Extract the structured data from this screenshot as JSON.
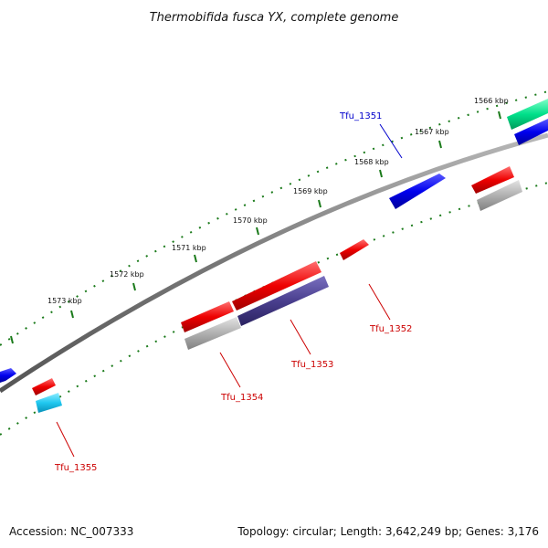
{
  "title": "Thermobifida fusca YX, complete genome",
  "footer": {
    "accession": "Accession: NC_007333",
    "summary": "Topology: circular; Length: 3,642,249 bp; Genes: 3,176"
  },
  "ticks": [
    "1566 kbp",
    "1567 kbp",
    "1568 kbp",
    "1569 kbp",
    "1570 kbp",
    "1571 kbp",
    "1572 kbp",
    "1573 kbp"
  ],
  "gene_labels": [
    "Tfu_1351",
    "Tfu_1352",
    "Tfu_1353",
    "Tfu_1354",
    "Tfu_1355"
  ],
  "colors": {
    "forward_cds": "#0000ee",
    "reverse_cds": "#ee0000",
    "rna": "#00e08a",
    "reverse_rna": "#20c8f0",
    "similarity": "#4a3f8e",
    "gray_feature": "#b0b0b0",
    "backbone": "#777777",
    "tick": "#1a7a1a",
    "label_blue": "#0000cc",
    "label_red": "#cc0000"
  }
}
